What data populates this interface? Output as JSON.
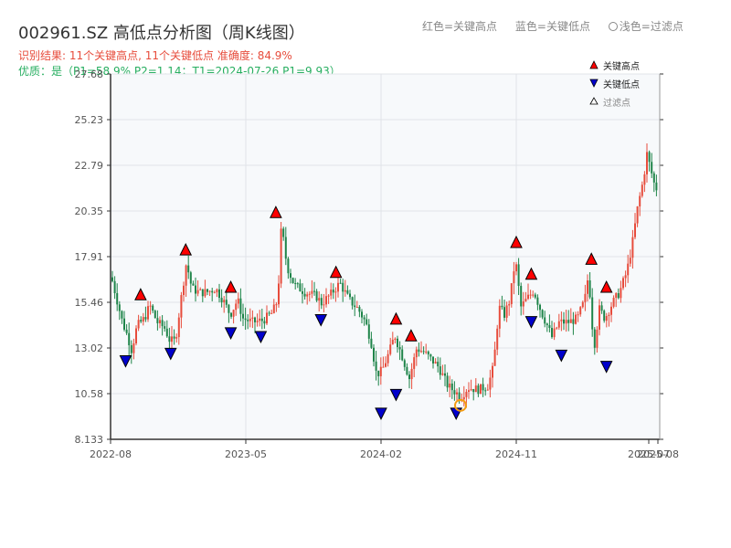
{
  "title": "002961.SZ 高低点分析图（周K线图）",
  "header_legend": {
    "red": "红色=关键高点",
    "blue": "蓝色=关键低点",
    "light": "浅色=过滤点"
  },
  "result_line": "识别结果: 11个关键高点, 11个关键低点  准确度: 84.9%",
  "quality_line": "优质：是（P1=58.9%  P2=1.14；T1=2024-07-26 P1=9.93）",
  "colors": {
    "up": "#e74c3c",
    "down": "#1e8449",
    "high_marker": "#ff0000",
    "low_marker": "#0000cc",
    "filtered_circle": "#f39c12",
    "plot_bg": "#f7f9fb",
    "grid": "#e0e4e8"
  },
  "chart_data": {
    "type": "candlestick",
    "x_labels": [
      "2022-08",
      "2023-05",
      "2024-02",
      "2024-11",
      "2025-07",
      "2025-08"
    ],
    "y_ticks": [
      "27.68",
      "25.23",
      "22.79",
      "20.35",
      "17.91",
      "15.46",
      "13.02",
      "10.58",
      "8.133"
    ],
    "ylim": [
      8.133,
      27.68
    ],
    "legend": {
      "high": "关键高点",
      "low": "关键低点",
      "filtered": "过滤点"
    },
    "key_highs": [
      {
        "date": "2022-10",
        "price": 15.5
      },
      {
        "date": "2023-01",
        "price": 17.9
      },
      {
        "date": "2023-04",
        "price": 15.9
      },
      {
        "date": "2023-07",
        "price": 19.9
      },
      {
        "date": "2023-11",
        "price": 16.7
      },
      {
        "date": "2024-03",
        "price": 14.2
      },
      {
        "date": "2024-04",
        "price": 13.3
      },
      {
        "date": "2024-11",
        "price": 18.3
      },
      {
        "date": "2024-12",
        "price": 16.6
      },
      {
        "date": "2025-04",
        "price": 17.4
      },
      {
        "date": "2025-05",
        "price": 15.9
      }
    ],
    "key_lows": [
      {
        "date": "2022-09",
        "price": 12.7
      },
      {
        "date": "2022-12",
        "price": 13.1
      },
      {
        "date": "2023-04",
        "price": 14.2
      },
      {
        "date": "2023-06",
        "price": 14.0
      },
      {
        "date": "2023-10",
        "price": 14.9
      },
      {
        "date": "2024-02",
        "price": 9.9
      },
      {
        "date": "2024-03",
        "price": 10.9
      },
      {
        "date": "2024-07",
        "price": 9.9
      },
      {
        "date": "2024-12",
        "price": 14.8
      },
      {
        "date": "2025-02",
        "price": 13.0
      },
      {
        "date": "2025-05",
        "price": 12.4
      }
    ]
  }
}
